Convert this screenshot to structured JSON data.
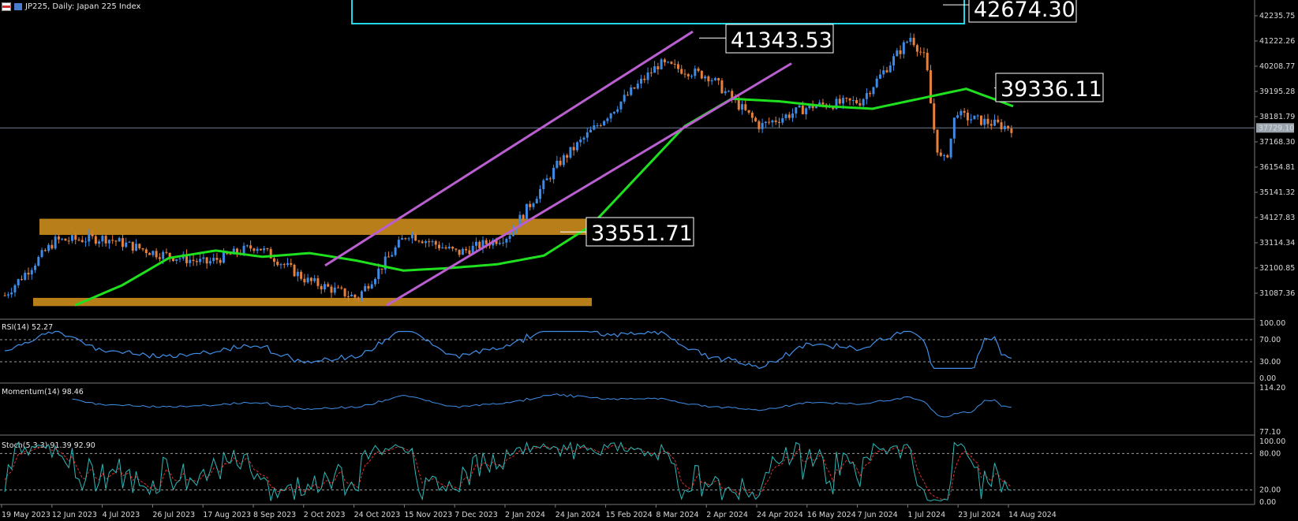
{
  "header": {
    "symbol": "JP225, Daily:  Japan 225 Index"
  },
  "colors": {
    "background": "#000000",
    "bull": "#3d8be6",
    "bear": "#e6803d",
    "ma": "#1fe01f",
    "channel": "#b95fcf",
    "zone": "#c8891b",
    "highlight_box": "#22d8e6",
    "rsi_line": "#3f8fe8",
    "stoch_main": "#2cb8b8",
    "stoch_signal": "#e03030"
  },
  "price_axis": {
    "ticks": [
      "42235.75",
      "41222.26",
      "40208.77",
      "39195.28",
      "38181.79",
      "37168.30",
      "36154.81",
      "35141.32",
      "34127.83",
      "33114.34",
      "32100.85",
      "31087.36"
    ],
    "current_price": "37729.10"
  },
  "callouts": {
    "high_2024": "42674.30",
    "march_peak": "41343.53",
    "ma_level": "39336.11",
    "support": "33551.71"
  },
  "time_axis": [
    "19 May 2023",
    "12 Jun 2023",
    "4 Jul 2023",
    "26 Jul 2023",
    "17 Aug 2023",
    "8 Sep 2023",
    "2 Oct 2023",
    "24 Oct 2023",
    "15 Nov 2023",
    "7 Dec 2023",
    "2 Jan 2024",
    "24 Jan 2024",
    "15 Feb 2024",
    "8 Mar 2024",
    "2 Apr 2024",
    "24 Apr 2024",
    "16 May 2024",
    "7 Jun 2024",
    "1 Jul 2024",
    "23 Jul 2024",
    "14 Aug 2024"
  ],
  "indicators": {
    "rsi": {
      "label": "RSI(14) 52.27",
      "levels": [
        "100.00",
        "70.00",
        "30.00",
        "0.00"
      ]
    },
    "momentum": {
      "label": "Momentum(14) 98.46",
      "levels": [
        "114.20",
        "77.10"
      ]
    },
    "stoch": {
      "label": "Stoch(5,3,3) 91.39 92.90",
      "levels": [
        "100.00",
        "80.00",
        "20.00",
        "0.00"
      ]
    }
  },
  "chart_data": {
    "type": "candlestick",
    "title": "JP225, Daily:  Japan 225 Index",
    "ylim": [
      30600,
      42900
    ],
    "x": [
      "19 May 2023",
      "12 Jun 2023",
      "4 Jul 2023",
      "26 Jul 2023",
      "17 Aug 2023",
      "8 Sep 2023",
      "2 Oct 2023",
      "24 Oct 2023",
      "15 Nov 2023",
      "7 Dec 2023",
      "2 Jan 2024",
      "24 Jan 2024",
      "15 Feb 2024",
      "8 Mar 2024",
      "2 Apr 2024",
      "24 Apr 2024",
      "16 May 2024",
      "7 Jun 2024",
      "1 Jul 2024",
      "23 Jul 2024",
      "14 Aug 2024"
    ],
    "close_approx": [
      31000,
      33200,
      33300,
      32700,
      32300,
      33000,
      31600,
      30900,
      33500,
      32700,
      33400,
      36300,
      38300,
      40300,
      39800,
      37800,
      38600,
      38800,
      41400,
      38200,
      37729
    ],
    "ma_approx": [
      30600,
      31400,
      32500,
      32800,
      32550,
      32700,
      32400,
      32000,
      32100,
      32250,
      32600,
      33800,
      35800,
      37800,
      38900,
      38800,
      38600,
      38500,
      38900,
      39300,
      38600
    ],
    "annotations": [
      "42674.30",
      "41343.53",
      "39336.11",
      "33551.71"
    ]
  }
}
